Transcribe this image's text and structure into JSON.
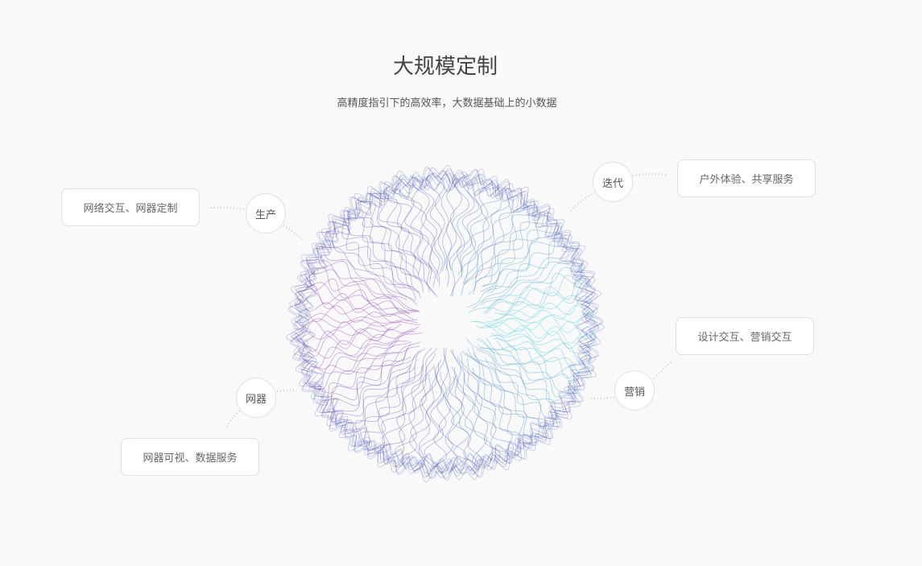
{
  "header": {
    "title": "大规模定制",
    "subtitle": "高精度指引下的高效率，大数据基础上的小数据"
  },
  "nodes": [
    {
      "label": "生产",
      "detail": "网络交互、网器定制"
    },
    {
      "label": "迭代",
      "detail": "户外体验、共享服务"
    },
    {
      "label": "营销",
      "detail": "设计交互、营销交互"
    },
    {
      "label": "网器",
      "detail": "网器可视、数据服务"
    }
  ],
  "colors": {
    "purple": "#9b3fb5",
    "cyan": "#3fd6e0",
    "indigo": "#4a4fb0"
  }
}
